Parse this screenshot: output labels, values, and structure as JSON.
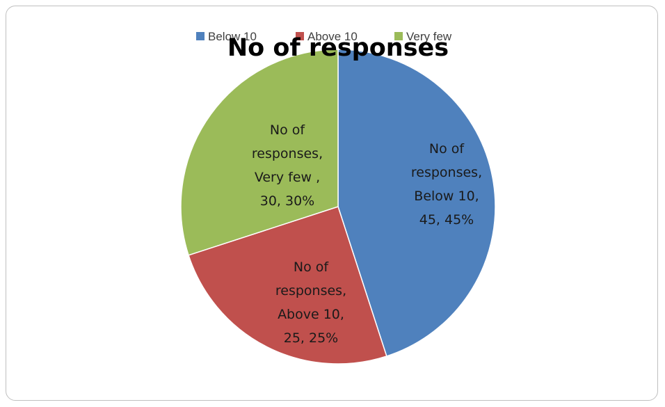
{
  "chart_data": {
    "type": "pie",
    "title": "No of responses",
    "categories": [
      "Below 10",
      "Above 10",
      "Very few"
    ],
    "values": [
      45,
      25,
      30
    ],
    "percent_labels": [
      "45%",
      "25%",
      "30%"
    ],
    "series": [
      {
        "name": "No of responses",
        "values": [
          45,
          25,
          30
        ]
      }
    ],
    "colors": [
      "#4f81bd",
      "#c0504d",
      "#9bbb59"
    ],
    "legend": "top",
    "data_labels": [
      [
        "No of",
        "responses,",
        "Below 10,",
        "45, 45%"
      ],
      [
        "No of",
        "responses,",
        "Above 10,",
        "25, 25%"
      ],
      [
        "No of",
        "responses,",
        "Very few ,",
        "30, 30%"
      ]
    ]
  }
}
